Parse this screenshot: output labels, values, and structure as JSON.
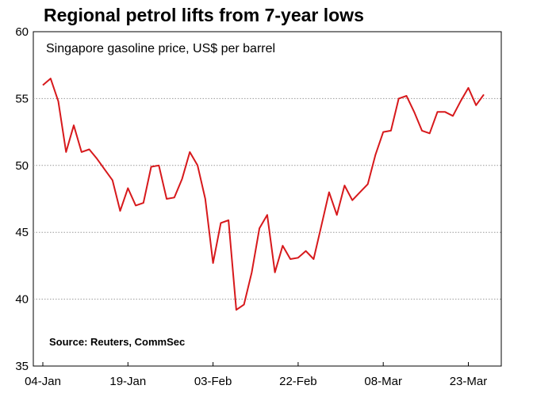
{
  "chart_data": {
    "type": "line",
    "title": "Regional petrol lifts from 7-year lows",
    "subtitle": "Singapore gasoline price, US$ per barrel",
    "source": "Source: Reuters, CommSec",
    "xlabel": "",
    "ylabel": "",
    "ylim": [
      35,
      60
    ],
    "yticks": [
      "35",
      "40",
      "45",
      "50",
      "55",
      "60"
    ],
    "xticks": [
      {
        "label": "04-Jan",
        "index": 0
      },
      {
        "label": "19-Jan",
        "index": 11
      },
      {
        "label": "03-Feb",
        "index": 22
      },
      {
        "label": "22-Feb",
        "index": 33
      },
      {
        "label": "08-Mar",
        "index": 44
      },
      {
        "label": "23-Mar",
        "index": 55
      }
    ],
    "grid": "horizontal-dotted",
    "line_color": "#d7191c",
    "series": [
      {
        "values": [
          56.0,
          56.5,
          54.8,
          51.0,
          53.0,
          51.0,
          51.2,
          50.5,
          49.7,
          48.9,
          46.6,
          48.3,
          47.0,
          47.2,
          49.9,
          50.0,
          47.5,
          47.6,
          49.0,
          51.0,
          50.0,
          47.5,
          42.7,
          45.7,
          45.9,
          39.2,
          39.6,
          42.0,
          45.3,
          46.3,
          42.0,
          44.0,
          43.0,
          43.1,
          43.6,
          43.0,
          45.5,
          48.0,
          46.3,
          48.5,
          47.4,
          48.0,
          48.6,
          50.8,
          52.5,
          52.6,
          55.0,
          55.2,
          54.0,
          52.6,
          52.4,
          54.0,
          54.0,
          53.7,
          54.8,
          55.8,
          54.5,
          55.3
        ]
      }
    ]
  }
}
